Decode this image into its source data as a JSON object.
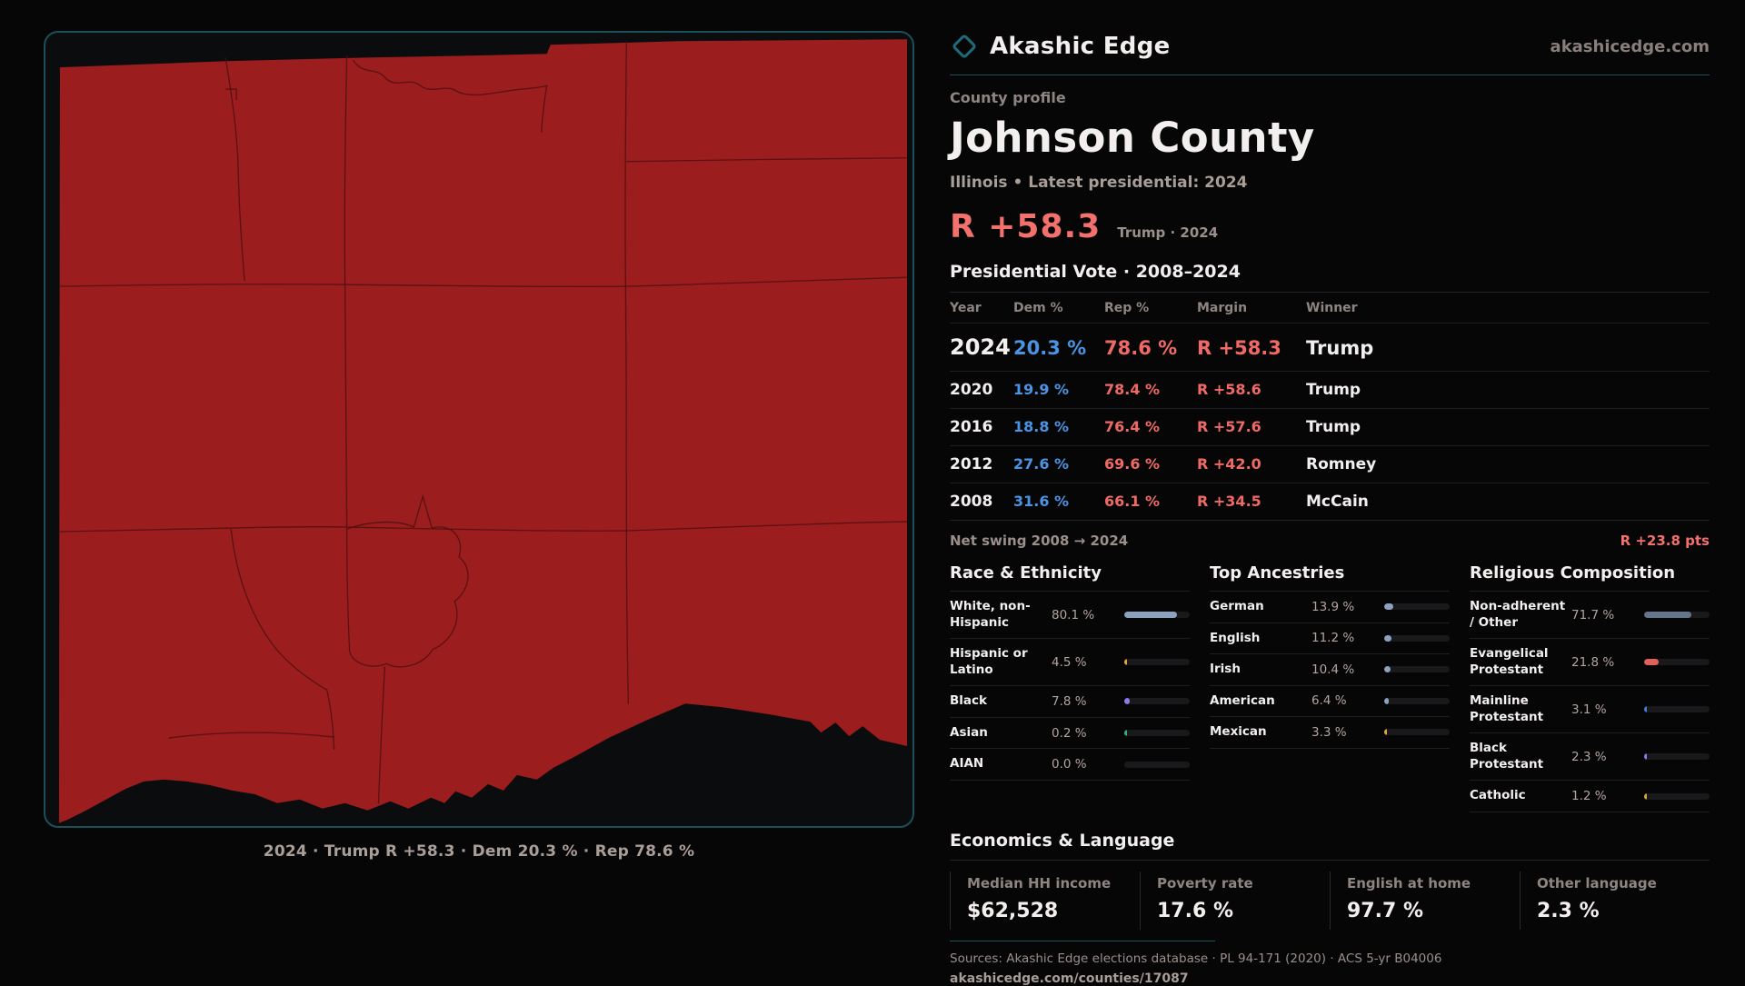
{
  "brand": {
    "name": "Akashic Edge",
    "site": "akashicedge.com",
    "logo_icon": "teal-diamond"
  },
  "profile": {
    "kicker": "County profile",
    "title": "Johnson County",
    "subtitle": "Illinois • Latest presidential: 2024",
    "headline_margin": "R +58.3",
    "headline_context": "Trump · 2024"
  },
  "vote_table": {
    "title": "Presidential Vote · 2008–2024",
    "columns": [
      "Year",
      "Dem %",
      "Rep %",
      "Margin",
      "Winner"
    ],
    "rows": [
      {
        "year": "2024",
        "dem": "20.3 %",
        "rep": "78.6 %",
        "margin": "R +58.3",
        "winner": "Trump"
      },
      {
        "year": "2020",
        "dem": "19.9 %",
        "rep": "78.4 %",
        "margin": "R +58.6",
        "winner": "Trump"
      },
      {
        "year": "2016",
        "dem": "18.8 %",
        "rep": "76.4 %",
        "margin": "R +57.6",
        "winner": "Trump"
      },
      {
        "year": "2012",
        "dem": "27.6 %",
        "rep": "69.6 %",
        "margin": "R +42.0",
        "winner": "Romney"
      },
      {
        "year": "2008",
        "dem": "31.6 %",
        "rep": "66.1 %",
        "margin": "R +34.5",
        "winner": "McCain"
      }
    ],
    "net_swing_label": "Net swing 2008 → 2024",
    "net_swing_value": "R +23.8 pts"
  },
  "demographics": {
    "race": {
      "title": "Race & Ethnicity",
      "items": [
        {
          "label": "White, non-Hispanic",
          "value": "80.1 %",
          "pct": 80.1,
          "color": "#8ca1bd"
        },
        {
          "label": "Hispanic or Latino",
          "value": "4.5 %",
          "pct": 4.5,
          "color": "#e3a43c"
        },
        {
          "label": "Black",
          "value": "7.8 %",
          "pct": 7.8,
          "color": "#8d7bea"
        },
        {
          "label": "Asian",
          "value": "0.2 %",
          "pct": 0.2,
          "color": "#2ab089"
        },
        {
          "label": "AIAN",
          "value": "0.0 %",
          "pct": 0,
          "color": "#8ca1bd"
        }
      ]
    },
    "ancestry": {
      "title": "Top Ancestries",
      "items": [
        {
          "label": "German",
          "value": "13.9 %",
          "pct": 13.9,
          "color": "#8ca1bd"
        },
        {
          "label": "English",
          "value": "11.2 %",
          "pct": 11.2,
          "color": "#8ca1bd"
        },
        {
          "label": "Irish",
          "value": "10.4 %",
          "pct": 10.4,
          "color": "#8ca1bd"
        },
        {
          "label": "American",
          "value": "6.4 %",
          "pct": 6.4,
          "color": "#8ca1bd"
        },
        {
          "label": "Mexican",
          "value": "3.3 %",
          "pct": 3.3,
          "color": "#e3a43c"
        }
      ]
    },
    "religion": {
      "title": "Religious Composition",
      "items": [
        {
          "label": "Non-adherent / Other",
          "value": "71.7 %",
          "pct": 71.7,
          "color": "#64748b"
        },
        {
          "label": "Evangelical Protestant",
          "value": "21.8 %",
          "pct": 21.8,
          "color": "#df6159"
        },
        {
          "label": "Mainline Protestant",
          "value": "3.1 %",
          "pct": 3.1,
          "color": "#3d7ed2"
        },
        {
          "label": "Black Protestant",
          "value": "2.3 %",
          "pct": 2.3,
          "color": "#8d7bea"
        },
        {
          "label": "Catholic",
          "value": "1.2 %",
          "pct": 1.2,
          "color": "#d9a33a"
        }
      ]
    }
  },
  "economics": {
    "title": "Economics & Language",
    "stats": [
      {
        "label": "Median HH income",
        "value": "$62,528"
      },
      {
        "label": "Poverty rate",
        "value": "17.6 %"
      },
      {
        "label": "English at home",
        "value": "97.7 %"
      },
      {
        "label": "Other language",
        "value": "2.3 %"
      }
    ]
  },
  "footer": {
    "sources": "Sources: Akashic Edge elections database · PL 94-171 (2020) · ACS 5-yr B04006",
    "permalink": "akashicedge.com/counties/17087"
  },
  "map": {
    "caption": "2024 · Trump  R +58.3 · Dem 20.3 % · Rep 78.6 %",
    "county_fill": "#9b1d1d",
    "panel_border": "#1b4f5a"
  },
  "colors": {
    "accent_teal": "#1c515c",
    "rep_red": "#ef6a64",
    "dem_blue": "#4a94e4",
    "margin_salmon": "#f3716c"
  }
}
